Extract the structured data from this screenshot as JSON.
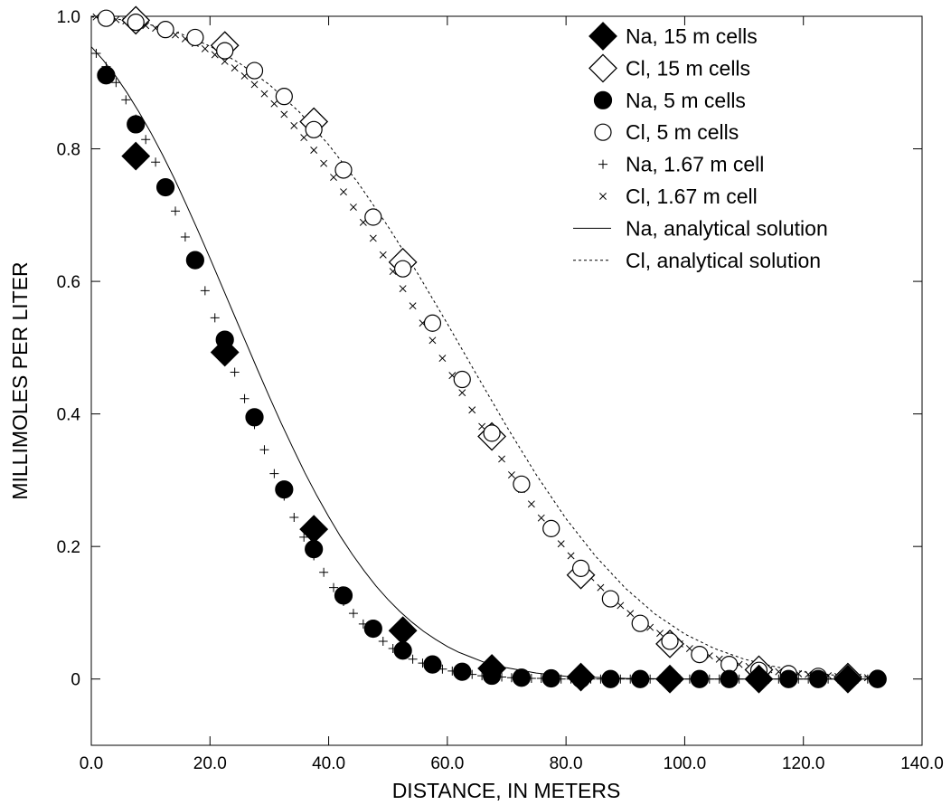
{
  "chart_data": {
    "type": "scatter",
    "xlabel": "DISTANCE, IN METERS",
    "ylabel": "MILLIMOLES PER LITER",
    "xlim": [
      0,
      140
    ],
    "ylim": [
      -0.1,
      1.0
    ],
    "x_ticks": [
      0,
      20,
      40,
      60,
      80,
      100,
      120,
      140
    ],
    "x_tick_labels": [
      "0.0",
      "20.0",
      "40.0",
      "60.0",
      "80.0",
      "100.0",
      "120.0",
      "140.0"
    ],
    "y_ticks": [
      0,
      0.2,
      0.4,
      0.6,
      0.8,
      1.0
    ],
    "y_tick_labels": [
      "0",
      "0.2",
      "0.4",
      "0.6",
      "0.8",
      "1.0"
    ],
    "grid": false,
    "legend_position": "top-right",
    "series": [
      {
        "name": "Na, 15 m cells",
        "marker": "diamond-filled",
        "x": [
          7.5,
          22.5,
          37.5,
          52.5,
          67.5,
          82.5,
          97.5,
          112.5,
          127.5
        ],
        "y": [
          0.789,
          0.493,
          0.226,
          0.073,
          0.016,
          0.003,
          0.0,
          0.0,
          0.0
        ]
      },
      {
        "name": "Cl, 15 m cells",
        "marker": "diamond-open",
        "x": [
          7.5,
          22.5,
          37.5,
          52.5,
          67.5,
          82.5,
          97.5,
          112.5,
          127.5
        ],
        "y": [
          0.994,
          0.956,
          0.841,
          0.629,
          0.366,
          0.157,
          0.053,
          0.014,
          0.003
        ]
      },
      {
        "name": "Na, 5 m cells",
        "marker": "circle-filled",
        "x": [
          2.5,
          7.5,
          12.5,
          17.5,
          22.5,
          27.5,
          32.5,
          37.5,
          42.5,
          47.5,
          52.5,
          57.5,
          62.5,
          67.5,
          72.5,
          77.5,
          82.5,
          87.5,
          92.5,
          97.5,
          102.5,
          107.5,
          112.5,
          117.5,
          122.5,
          127.5,
          132.5
        ],
        "y": [
          0.911,
          0.837,
          0.742,
          0.632,
          0.512,
          0.395,
          0.286,
          0.196,
          0.126,
          0.076,
          0.043,
          0.022,
          0.011,
          0.005,
          0.002,
          0.001,
          0.0,
          0.0,
          0.0,
          0.0,
          0.0,
          0.0,
          0.0,
          0.0,
          0.0,
          0.0,
          0.0
        ]
      },
      {
        "name": "Cl, 5 m cells",
        "marker": "circle-open",
        "x": [
          2.5,
          7.5,
          12.5,
          17.5,
          22.5,
          27.5,
          32.5,
          37.5,
          42.5,
          47.5,
          52.5,
          57.5,
          62.5,
          67.5,
          72.5,
          77.5,
          82.5,
          87.5,
          92.5,
          97.5,
          102.5,
          107.5,
          112.5,
          117.5,
          122.5,
          127.5,
          132.5
        ],
        "y": [
          0.997,
          0.991,
          0.98,
          0.968,
          0.948,
          0.918,
          0.879,
          0.829,
          0.768,
          0.697,
          0.619,
          0.537,
          0.452,
          0.371,
          0.294,
          0.227,
          0.167,
          0.121,
          0.084,
          0.057,
          0.037,
          0.022,
          0.013,
          0.008,
          0.004,
          0.002,
          0.001
        ]
      },
      {
        "name": "Na, 1.67 m cell",
        "marker": "plus",
        "x": [
          0.83,
          2.5,
          4.17,
          5.83,
          7.5,
          9.17,
          10.83,
          12.5,
          14.17,
          15.83,
          17.5,
          19.17,
          20.83,
          22.5,
          24.17,
          25.83,
          27.5,
          29.17,
          30.83,
          32.5,
          34.17,
          35.83,
          37.5,
          39.17,
          40.83,
          42.5,
          44.17,
          45.83,
          47.5,
          49.17,
          50.83,
          52.5,
          54.17,
          55.83,
          57.5,
          59.17,
          60.83,
          62.5,
          64.17,
          65.83,
          67.5,
          69.17,
          70.83,
          72.5,
          74.17,
          75.83,
          77.5,
          79.17,
          80.83,
          82.5,
          84.17,
          85.83,
          87.5,
          89.17,
          90.83,
          92.5,
          94.17,
          95.83,
          97.5,
          99.17,
          100.83,
          102.5,
          104.17,
          105.83,
          107.5,
          109.17,
          110.83,
          112.5,
          114.17,
          115.83,
          117.5,
          119.17,
          120.83,
          122.5,
          124.17,
          125.83,
          127.5,
          129.17,
          130.83,
          132.5
        ],
        "y": [
          0.944,
          0.924,
          0.9,
          0.874,
          0.845,
          0.814,
          0.78,
          0.744,
          0.706,
          0.667,
          0.627,
          0.586,
          0.545,
          0.504,
          0.463,
          0.423,
          0.384,
          0.346,
          0.31,
          0.276,
          0.244,
          0.214,
          0.186,
          0.161,
          0.138,
          0.117,
          0.099,
          0.083,
          0.069,
          0.057,
          0.046,
          0.038,
          0.03,
          0.024,
          0.019,
          0.015,
          0.012,
          0.009,
          0.007,
          0.005,
          0.004,
          0.003,
          0.002,
          0.002,
          0.001,
          0.001,
          0.001,
          0.0,
          0.0,
          0.0,
          0.0,
          0.0,
          0.0,
          0.0,
          0.0,
          0.0,
          0.0,
          0.0,
          0.0,
          0.0,
          0.0,
          0.0,
          0.0,
          0.0,
          0.0,
          0.0,
          0.0,
          0.0,
          0.0,
          0.0,
          0.0,
          0.0,
          0.0,
          0.0,
          0.0,
          0.0,
          0.0,
          0.0,
          0.0,
          0.0
        ]
      },
      {
        "name": "Cl, 1.67 m cell",
        "marker": "x",
        "x": [
          0.83,
          2.5,
          4.17,
          5.83,
          7.5,
          9.17,
          10.83,
          12.5,
          14.17,
          15.83,
          17.5,
          19.17,
          20.83,
          22.5,
          24.17,
          25.83,
          27.5,
          29.17,
          30.83,
          32.5,
          34.17,
          35.83,
          37.5,
          39.17,
          40.83,
          42.5,
          44.17,
          45.83,
          47.5,
          49.17,
          50.83,
          52.5,
          54.17,
          55.83,
          57.5,
          59.17,
          60.83,
          62.5,
          64.17,
          65.83,
          67.5,
          69.17,
          70.83,
          72.5,
          74.17,
          75.83,
          77.5,
          79.17,
          80.83,
          82.5,
          84.17,
          85.83,
          87.5,
          89.17,
          90.83,
          92.5,
          94.17,
          95.83,
          97.5,
          99.17,
          100.83,
          102.5,
          104.17,
          105.83,
          107.5,
          109.17,
          110.83,
          112.5,
          114.17,
          115.83,
          117.5,
          119.17,
          120.83,
          122.5,
          124.17,
          125.83,
          127.5,
          129.17,
          130.83,
          132.5
        ],
        "y": [
          0.999,
          0.997,
          0.995,
          0.993,
          0.99,
          0.986,
          0.982,
          0.977,
          0.972,
          0.966,
          0.959,
          0.951,
          0.942,
          0.932,
          0.922,
          0.91,
          0.897,
          0.883,
          0.868,
          0.852,
          0.835,
          0.817,
          0.798,
          0.778,
          0.757,
          0.735,
          0.712,
          0.689,
          0.665,
          0.64,
          0.615,
          0.589,
          0.563,
          0.537,
          0.511,
          0.484,
          0.458,
          0.432,
          0.406,
          0.381,
          0.356,
          0.332,
          0.308,
          0.286,
          0.264,
          0.243,
          0.223,
          0.204,
          0.186,
          0.169,
          0.153,
          0.138,
          0.124,
          0.111,
          0.099,
          0.088,
          0.078,
          0.069,
          0.061,
          0.053,
          0.046,
          0.04,
          0.035,
          0.03,
          0.026,
          0.022,
          0.019,
          0.016,
          0.014,
          0.011,
          0.01,
          0.008,
          0.007,
          0.006,
          0.005,
          0.004,
          0.003,
          0.003,
          0.002,
          0.002
        ]
      },
      {
        "name": "Na, analytical solution",
        "marker": "line-solid",
        "x": [
          0,
          2,
          4,
          6,
          8,
          10,
          12,
          14,
          16,
          18,
          20,
          22,
          24,
          26,
          28,
          30,
          32,
          34,
          36,
          38,
          40,
          42,
          44,
          46,
          48,
          50,
          52,
          54,
          56,
          58,
          60,
          62,
          64,
          66,
          68,
          70,
          75,
          80,
          90,
          100,
          110,
          120,
          133
        ],
        "y": [
          0.954,
          0.934,
          0.911,
          0.885,
          0.856,
          0.825,
          0.791,
          0.755,
          0.716,
          0.676,
          0.635,
          0.593,
          0.551,
          0.509,
          0.467,
          0.426,
          0.386,
          0.348,
          0.311,
          0.277,
          0.245,
          0.215,
          0.188,
          0.163,
          0.14,
          0.12,
          0.102,
          0.086,
          0.072,
          0.06,
          0.049,
          0.04,
          0.033,
          0.026,
          0.021,
          0.017,
          0.009,
          0.004,
          0.001,
          0.0,
          0.0,
          0.0,
          0.0
        ]
      },
      {
        "name": "Cl, analytical solution",
        "marker": "line-dashed",
        "x": [
          0,
          5,
          10,
          15,
          20,
          25,
          30,
          35,
          40,
          45,
          50,
          55,
          60,
          65,
          70,
          75,
          80,
          85,
          90,
          95,
          100,
          105,
          110,
          115,
          120,
          125,
          133
        ],
        "y": [
          0.999,
          0.995,
          0.987,
          0.974,
          0.955,
          0.929,
          0.897,
          0.856,
          0.806,
          0.748,
          0.683,
          0.612,
          0.536,
          0.458,
          0.381,
          0.308,
          0.242,
          0.185,
          0.137,
          0.098,
          0.068,
          0.046,
          0.03,
          0.019,
          0.011,
          0.006,
          0.002
        ]
      }
    ]
  }
}
